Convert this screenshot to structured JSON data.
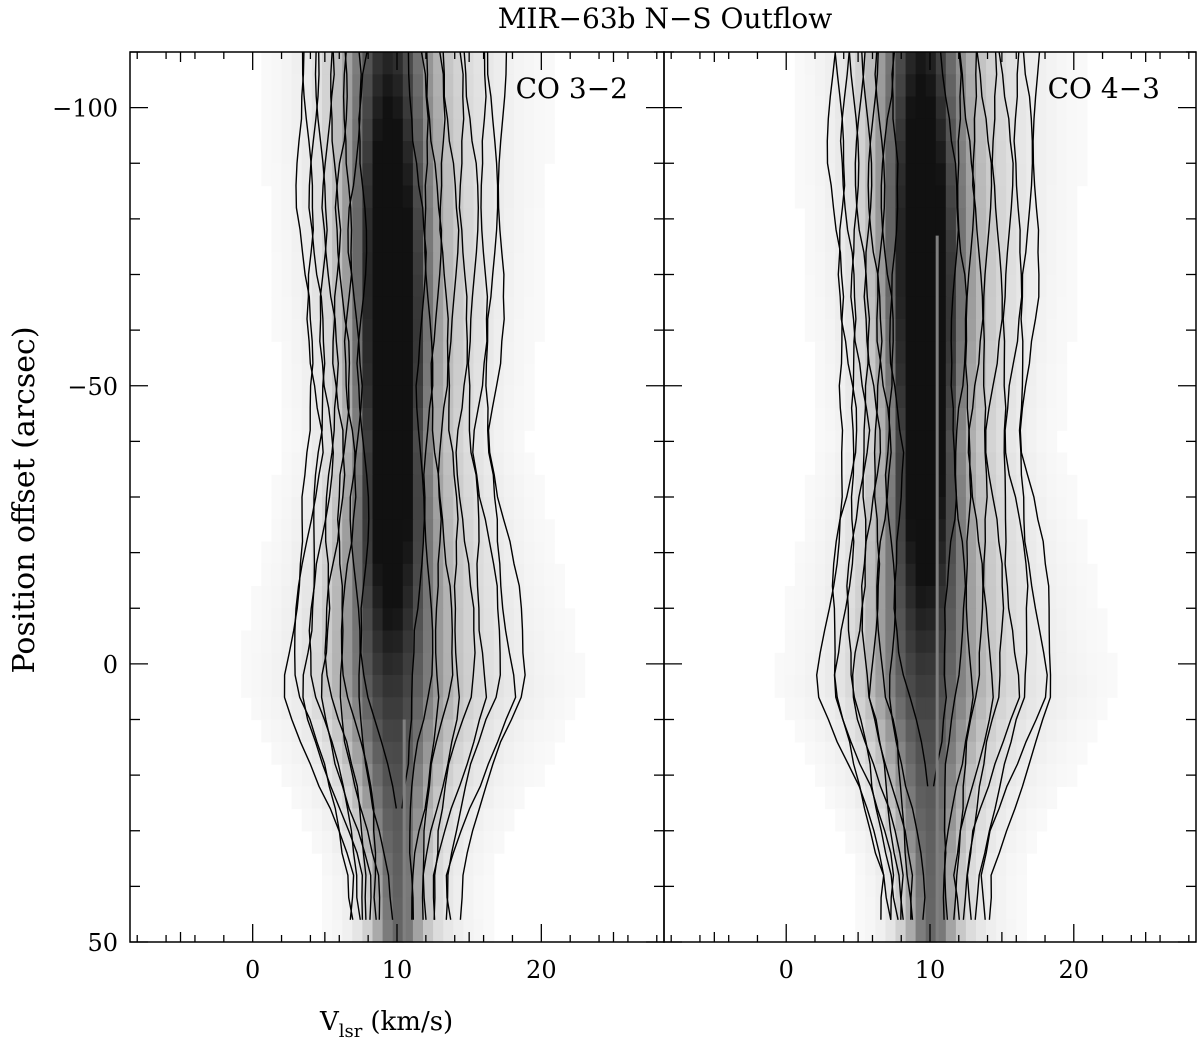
{
  "chart_data": {
    "type": "heatmap",
    "title": "MIR−63b N−S Outflow",
    "xlabel_main": "V",
    "xlabel_sub": "lsr",
    "xlabel_units": "(km/s)",
    "ylabel": "Position offset (arcsec)",
    "xlim": [
      -8.5,
      28.5
    ],
    "ylim": [
      -110,
      50
    ],
    "y_inverted": true,
    "x_ticks": [
      0,
      10,
      20
    ],
    "y_ticks": [
      -100,
      -50,
      0,
      50
    ],
    "panels": [
      {
        "label": "CO 3−2",
        "reference_velocity": 10.5,
        "peak_velocity": 9.6,
        "contour_levels": 10,
        "peak_offset": -55,
        "offset_range": [
          -110,
          46
        ]
      },
      {
        "label": "CO 4−3",
        "reference_velocity": 10.5,
        "peak_velocity": 9.6,
        "contour_levels": 10,
        "peak_offset": -60,
        "offset_range": [
          -110,
          46
        ]
      }
    ]
  }
}
